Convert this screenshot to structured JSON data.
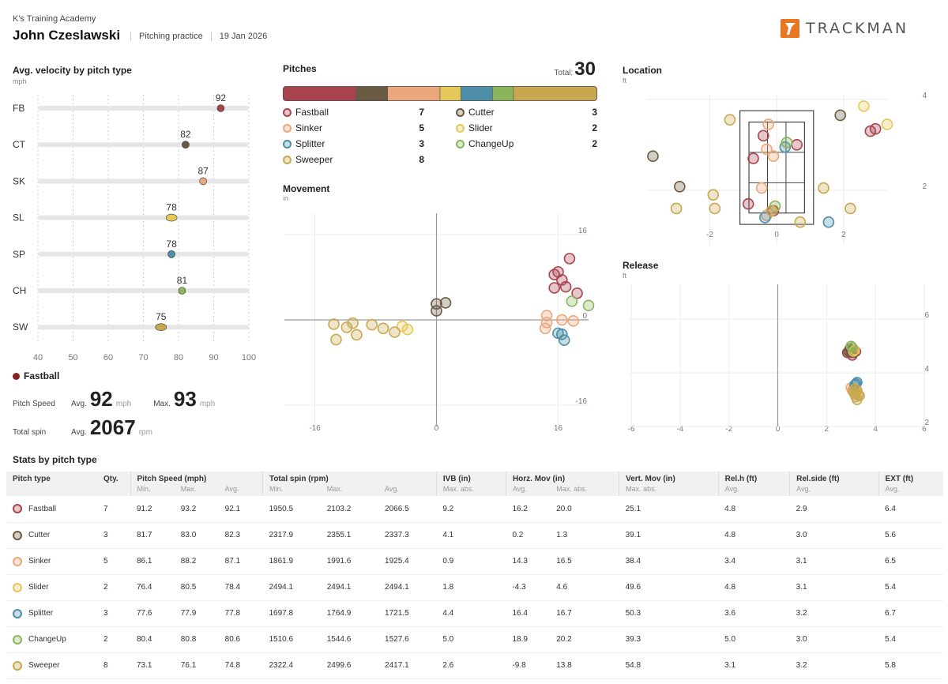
{
  "header": {
    "academy": "K's Training Academy",
    "player": "John Czeslawski",
    "session": "Pitching practice",
    "date": "19 Jan 2026",
    "brand": "TRACKMAN"
  },
  "colors": {
    "Fastball": "#a8434f",
    "Cutter": "#6b5a42",
    "Sinker": "#eaa77c",
    "Slider": "#e5c85a",
    "Splitter": "#4d8fa8",
    "ChangeUp": "#8ab55a",
    "Sweeper": "#c8a84e"
  },
  "velocity": {
    "title": "Avg. velocity by pitch type",
    "unit": "mph",
    "selected": {
      "name": "Fastball",
      "speed_label": "Pitch Speed",
      "avg_label": "Avg.",
      "avg_speed": "92",
      "speed_unit": "mph",
      "max_label": "Max.",
      "max_speed": "93",
      "spin_label": "Total spin",
      "spin_avg_label": "Avg.",
      "avg_spin": "2067",
      "spin_unit": "rpm"
    }
  },
  "pitches": {
    "title": "Pitches",
    "total_label": "Total:",
    "total": "30",
    "legend": [
      {
        "name": "Fastball",
        "count": "7"
      },
      {
        "name": "Cutter",
        "count": "3"
      },
      {
        "name": "Sinker",
        "count": "5"
      },
      {
        "name": "Slider",
        "count": "2"
      },
      {
        "name": "Splitter",
        "count": "3"
      },
      {
        "name": "ChangeUp",
        "count": "2"
      },
      {
        "name": "Sweeper",
        "count": "8"
      }
    ]
  },
  "movement_title": "Movement",
  "movement_unit": "in",
  "location_title": "Location",
  "location_unit": "ft",
  "release_title": "Release",
  "release_unit": "ft",
  "chart_data": [
    {
      "id": "velocity",
      "type": "scatter",
      "title": "Avg. velocity by pitch type",
      "ylabel": "mph",
      "categories": [
        "FB",
        "CT",
        "SK",
        "SL",
        "SP",
        "CH",
        "SW"
      ],
      "pitch_types": [
        "Fastball",
        "Cutter",
        "Sinker",
        "Slider",
        "Splitter",
        "ChangeUp",
        "Sweeper"
      ],
      "values": [
        92,
        82,
        87,
        78,
        78,
        81,
        75
      ],
      "xlim": [
        40,
        100
      ],
      "xticks": [
        40,
        50,
        60,
        70,
        80,
        90,
        100
      ]
    },
    {
      "id": "pitch_mix",
      "type": "bar",
      "title": "Pitches",
      "order": [
        "Fastball",
        "Cutter",
        "Sinker",
        "Slider",
        "Splitter",
        "ChangeUp",
        "Sweeper"
      ],
      "values": [
        7,
        3,
        5,
        2,
        3,
        2,
        8
      ],
      "total": 30
    },
    {
      "id": "movement",
      "type": "scatter",
      "title": "Movement",
      "unit": "in",
      "xlim": [
        -20,
        20
      ],
      "ylim": [
        -20,
        20
      ],
      "xticks": [
        -16,
        0,
        16
      ],
      "yticks": [
        -16,
        0,
        16
      ],
      "series": [
        {
          "name": "Fastball",
          "points": [
            [
              17.5,
              11.5
            ],
            [
              15.5,
              8.5
            ],
            [
              16.5,
              7.5
            ],
            [
              17.0,
              6.2
            ],
            [
              15.5,
              6.0
            ],
            [
              18.5,
              5.0
            ],
            [
              16.0,
              9.0
            ]
          ]
        },
        {
          "name": "Cutter",
          "points": [
            [
              0,
              3.0
            ],
            [
              1.2,
              3.2
            ],
            [
              0,
              1.7
            ]
          ]
        },
        {
          "name": "Sinker",
          "points": [
            [
              14.5,
              0.8
            ],
            [
              16.5,
              0.0
            ],
            [
              18.0,
              -0.2
            ],
            [
              14.5,
              -0.5
            ],
            [
              14.3,
              -1.6
            ]
          ]
        },
        {
          "name": "Slider",
          "points": [
            [
              -4.5,
              -1.2
            ],
            [
              -3.8,
              -1.8
            ]
          ]
        },
        {
          "name": "Splitter",
          "points": [
            [
              16.0,
              -2.5
            ],
            [
              16.5,
              -2.7
            ],
            [
              16.8,
              -3.8
            ]
          ]
        },
        {
          "name": "ChangeUp",
          "points": [
            [
              17.8,
              3.5
            ],
            [
              20.0,
              2.7
            ]
          ]
        },
        {
          "name": "Sweeper",
          "points": [
            [
              -13.5,
              -0.8
            ],
            [
              -11.0,
              -0.6
            ],
            [
              -8.5,
              -0.9
            ],
            [
              -11.8,
              -1.4
            ],
            [
              -7.0,
              -1.6
            ],
            [
              -13.2,
              -3.7
            ],
            [
              -10.5,
              -2.8
            ],
            [
              -5.5,
              -2.3
            ]
          ]
        }
      ]
    },
    {
      "id": "location",
      "type": "scatter",
      "title": "Location",
      "unit": "ft",
      "xlim": [
        -3.9,
        3.3
      ],
      "ylim": [
        0.8,
        4.1
      ],
      "xticks": [
        -2,
        0,
        2
      ],
      "yticks": [
        2,
        4
      ],
      "series": [
        {
          "name": "Fastball",
          "points": [
            [
              -0.7,
              2.7
            ],
            [
              -0.4,
              3.2
            ],
            [
              0.6,
              3.0
            ],
            [
              2.8,
              3.3
            ],
            [
              2.95,
              3.35
            ],
            [
              -0.85,
              1.7
            ],
            [
              -0.1,
              1.55
            ]
          ]
        },
        {
          "name": "Cutter",
          "points": [
            [
              -3.7,
              2.75
            ],
            [
              -2.9,
              2.08
            ],
            [
              1.9,
              3.65
            ]
          ]
        },
        {
          "name": "Sinker",
          "points": [
            [
              -0.25,
              3.45
            ],
            [
              -0.3,
              2.9
            ],
            [
              -0.1,
              2.75
            ],
            [
              -0.45,
              2.05
            ],
            [
              -0.3,
              1.45
            ]
          ]
        },
        {
          "name": "Slider",
          "points": [
            [
              2.6,
              3.85
            ],
            [
              3.3,
              3.45
            ]
          ]
        },
        {
          "name": "Splitter",
          "points": [
            [
              -0.35,
              1.4
            ],
            [
              0.25,
              2.95
            ],
            [
              1.55,
              1.3
            ]
          ]
        },
        {
          "name": "ChangeUp",
          "points": [
            [
              0.3,
              3.05
            ],
            [
              -0.05,
              1.65
            ]
          ]
        },
        {
          "name": "Sweeper",
          "points": [
            [
              -1.4,
              3.55
            ],
            [
              -1.9,
              1.9
            ],
            [
              -1.85,
              1.6
            ],
            [
              -3.0,
              1.6
            ],
            [
              -0.15,
              1.55
            ],
            [
              2.2,
              1.6
            ],
            [
              1.4,
              2.05
            ],
            [
              0.7,
              1.3
            ]
          ]
        }
      ]
    },
    {
      "id": "release",
      "type": "scatter",
      "title": "Release",
      "unit": "ft",
      "xlim": [
        -6.1,
        6.1
      ],
      "ylim": [
        2.0,
        7.3
      ],
      "xticks": [
        -6,
        -4,
        -2,
        0,
        2,
        4,
        6
      ],
      "yticks": [
        2,
        4,
        6
      ],
      "series": [
        {
          "name": "Fastball",
          "points": [
            [
              2.9,
              4.8
            ],
            [
              3.0,
              4.75
            ],
            [
              3.1,
              4.85
            ],
            [
              2.95,
              4.9
            ],
            [
              3.2,
              4.8
            ],
            [
              2.85,
              4.75
            ],
            [
              3.05,
              4.65
            ]
          ]
        },
        {
          "name": "Cutter",
          "points": [
            [
              3.0,
              4.85
            ],
            [
              2.9,
              4.8
            ],
            [
              3.1,
              4.75
            ]
          ]
        },
        {
          "name": "Sinker",
          "points": [
            [
              3.1,
              3.4
            ],
            [
              3.2,
              3.3
            ],
            [
              3.0,
              3.45
            ],
            [
              3.15,
              3.2
            ],
            [
              3.05,
              3.35
            ]
          ]
        },
        {
          "name": "Slider",
          "points": [
            [
              3.1,
              4.8
            ],
            [
              3.15,
              4.85
            ]
          ]
        },
        {
          "name": "Splitter",
          "points": [
            [
              3.2,
              3.6
            ],
            [
              3.15,
              3.55
            ],
            [
              3.25,
              3.65
            ]
          ]
        },
        {
          "name": "ChangeUp",
          "points": [
            [
              3.0,
              5.0
            ],
            [
              3.05,
              4.95
            ]
          ]
        },
        {
          "name": "Sweeper",
          "points": [
            [
              3.2,
              3.1
            ],
            [
              3.3,
              3.2
            ],
            [
              3.1,
              3.3
            ],
            [
              3.25,
              3.0
            ],
            [
              3.15,
              3.4
            ],
            [
              3.2,
              3.25
            ],
            [
              3.35,
              3.15
            ],
            [
              3.25,
              3.35
            ]
          ]
        }
      ]
    },
    {
      "id": "stats",
      "type": "table",
      "title": "Stats by pitch type",
      "header_groups": [
        "Pitch type",
        "Qty.",
        "Pitch Speed (mph)",
        "Total spin (rpm)",
        "IVB (in)",
        "Horz. Mov (in)",
        "Vert. Mov (in)",
        "Rel.h (ft)",
        "Rel.side (ft)",
        "EXT (ft)"
      ],
      "subheaders": [
        "",
        "",
        "Min.",
        "Max.",
        "Avg.",
        "Min.",
        "Max.",
        "Avg.",
        "Max. abs.",
        "Avg.",
        "Max. abs.",
        "Max. abs.",
        "Avg.",
        "Avg.",
        "Avg."
      ],
      "rows": [
        [
          "Fastball",
          "7",
          "91.2",
          "93.2",
          "92.1",
          "1950.5",
          "2103.2",
          "2066.5",
          "9.2",
          "16.2",
          "20.0",
          "25.1",
          "4.8",
          "2.9",
          "6.4"
        ],
        [
          "Cutter",
          "3",
          "81.7",
          "83.0",
          "82.3",
          "2317.9",
          "2355.1",
          "2337.3",
          "4.1",
          "0.2",
          "1.3",
          "39.1",
          "4.8",
          "3.0",
          "5.6"
        ],
        [
          "Sinker",
          "5",
          "86.1",
          "88.2",
          "87.1",
          "1861.9",
          "1991.6",
          "1925.4",
          "0.9",
          "14.3",
          "16.5",
          "38.4",
          "3.4",
          "3.1",
          "6.5"
        ],
        [
          "Slider",
          "2",
          "76.4",
          "80.5",
          "78.4",
          "2494.1",
          "2494.1",
          "2494.1",
          "1.8",
          "-4.3",
          "4.6",
          "49.6",
          "4.8",
          "3.1",
          "5.4"
        ],
        [
          "Splitter",
          "3",
          "77.6",
          "77.9",
          "77.8",
          "1697.8",
          "1764.9",
          "1721.5",
          "4.4",
          "16.4",
          "16.7",
          "50.3",
          "3.6",
          "3.2",
          "6.7"
        ],
        [
          "ChangeUp",
          "2",
          "80.4",
          "80.8",
          "80.6",
          "1510.6",
          "1544.6",
          "1527.6",
          "5.0",
          "18.9",
          "20.2",
          "39.3",
          "5.0",
          "3.0",
          "5.4"
        ],
        [
          "Sweeper",
          "8",
          "73.1",
          "76.1",
          "74.8",
          "2322.4",
          "2499.6",
          "2417.1",
          "2.6",
          "-9.8",
          "13.8",
          "54.8",
          "3.1",
          "3.2",
          "5.8"
        ]
      ]
    }
  ]
}
